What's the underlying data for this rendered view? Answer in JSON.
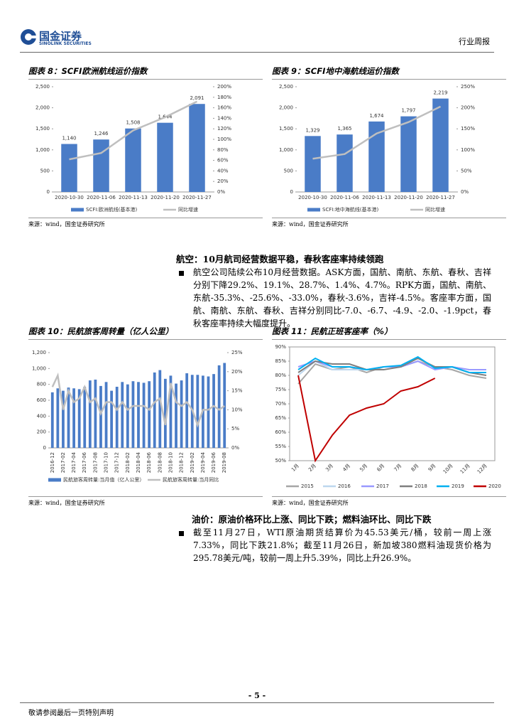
{
  "header": {
    "logo_cn": "国金证券",
    "logo_en": "SINOLINK SECURITIES",
    "report_type": "行业周报"
  },
  "chart_data": [
    {
      "type": "combo",
      "title": "图表 8：SCFI欧洲航线运价指数",
      "source": "来源：wind，国金证券研究所",
      "categories": [
        "2020-10-30",
        "2020-11-06",
        "2020-11-13",
        "2020-11-20",
        "2020-11-27"
      ],
      "ylim": [
        0,
        2500
      ],
      "yticks": [
        0,
        500,
        {
          "value": 1000,
          "label": "1,000"
        },
        {
          "value": 1500,
          "label": "1,500"
        },
        {
          "value": 2000,
          "label": "2,000"
        },
        {
          "value": 2500,
          "label": "2,500"
        }
      ],
      "y2lim": [
        0,
        200
      ],
      "y2ticks": [
        {
          "value": 0,
          "label": "0%"
        },
        {
          "value": 20,
          "label": "20%"
        },
        {
          "value": 40,
          "label": "40%"
        },
        {
          "value": 60,
          "label": "60%"
        },
        {
          "value": 80,
          "label": "80%"
        },
        {
          "value": 100,
          "label": "100%"
        },
        {
          "value": 120,
          "label": "120%"
        },
        {
          "value": 140,
          "label": "140%"
        },
        {
          "value": 160,
          "label": "160%"
        },
        {
          "value": 180,
          "label": "180%"
        },
        {
          "value": 200,
          "label": "200%"
        }
      ],
      "series": [
        {
          "name": "SCFI:欧洲航线(基本港)",
          "mark": "bar",
          "color": "#4a7cc7",
          "values": [
            1140,
            1246,
            1508,
            1644,
            2091
          ],
          "value_labels": [
            "1,140",
            "1,246",
            "1,508",
            "1,644",
            "2,091"
          ]
        },
        {
          "name": "同比增速",
          "mark": "line",
          "axis": "y2",
          "color": "#bfbfbf",
          "values": [
            62,
            74,
            117,
            142,
            172
          ]
        }
      ]
    },
    {
      "type": "combo",
      "title": "图表 9：SCFI地中海航线运价指数",
      "source": "来源：wind，国金证券研究所",
      "categories": [
        "2020-10-30",
        "2020-11-06",
        "2020-11-13",
        "2020-11-20",
        "2020-11-27"
      ],
      "ylim": [
        0,
        2500
      ],
      "yticks": [
        0,
        500,
        {
          "value": 1000,
          "label": "1,000"
        },
        {
          "value": 1500,
          "label": "1,500"
        },
        {
          "value": 2000,
          "label": "2,000"
        },
        {
          "value": 2500,
          "label": "2,500"
        }
      ],
      "y2lim": [
        0,
        250
      ],
      "y2ticks": [
        {
          "value": 0,
          "label": "0%"
        },
        {
          "value": 50,
          "label": "50%"
        },
        {
          "value": 100,
          "label": "100%"
        },
        {
          "value": 150,
          "label": "150%"
        },
        {
          "value": 200,
          "label": "200%"
        },
        {
          "value": 250,
          "label": "250%"
        }
      ],
      "series": [
        {
          "name": "SCFI:地中海航线(基本港)",
          "mark": "bar",
          "color": "#4a7cc7",
          "values": [
            1329,
            1365,
            1674,
            1797,
            2219
          ],
          "value_labels": [
            "1,329",
            "1,365",
            "1,674",
            "1,797",
            "2,219"
          ]
        },
        {
          "name": "同比增速",
          "mark": "line",
          "axis": "y2",
          "color": "#bfbfbf",
          "values": [
            79,
            90,
            139,
            166,
            203
          ]
        }
      ]
    },
    {
      "type": "combo",
      "title": "图表 10：民航旅客周转量（亿人公里）",
      "source": "来源：wind，国金证券研究所",
      "categories": [
        "2016-12",
        null,
        "2017-02",
        null,
        "2017-04",
        null,
        "2017-06",
        null,
        "2017-08",
        null,
        "2017-10",
        null,
        "2017-12",
        null,
        "2018-02",
        null,
        "2018-04",
        null,
        "2018-06",
        null,
        "2018-08",
        null,
        "2018-10",
        null,
        "2018-12",
        null,
        "2019-02",
        null,
        "2019-04",
        null,
        "2019-06",
        null,
        "2019-08"
      ],
      "ylim": [
        0,
        1200
      ],
      "yticks": [
        0,
        200,
        400,
        600,
        800,
        {
          "value": 1000,
          "label": "1,000"
        },
        {
          "value": 1200,
          "label": "1,200"
        }
      ],
      "y2lim": [
        0,
        25
      ],
      "y2ticks": [
        {
          "value": 0,
          "label": "0%"
        },
        {
          "value": 5,
          "label": "5%"
        },
        {
          "value": 10,
          "label": "10%"
        },
        {
          "value": 15,
          "label": "15%"
        },
        {
          "value": 20,
          "label": "20%"
        },
        {
          "value": 25,
          "label": "25%"
        }
      ],
      "series": [
        {
          "name": "民航旅客周转量:当月值（亿人公里）",
          "mark": "bar",
          "color": "#4a7cc7",
          "values": [
            700,
            750,
            720,
            760,
            750,
            740,
            770,
            850,
            860,
            780,
            830,
            720,
            770,
            830,
            800,
            840,
            830,
            820,
            840,
            950,
            980,
            870,
            910,
            810,
            850,
            940,
            920,
            920,
            910,
            900,
            930,
            1040,
            1070
          ]
        },
        {
          "name": "民航旅客周转量:当月同比",
          "mark": "line",
          "axis": "y2",
          "color": "#bfbfbf",
          "values": [
            16,
            19,
            10,
            15,
            12,
            13,
            16,
            12,
            13,
            9,
            12,
            12,
            10,
            12,
            10,
            11,
            11,
            11,
            10,
            12,
            13,
            6,
            17,
            12,
            11,
            12,
            10,
            6,
            10,
            10,
            11,
            10,
            11
          ]
        }
      ]
    },
    {
      "type": "line",
      "title": "图表 11：民航正班客座率（%）",
      "source": "来源：wind，国金证券研究所",
      "categories": [
        "1月",
        "2月",
        "3月",
        "4月",
        "5月",
        "6月",
        "7月",
        "8月",
        "9月",
        "10月",
        "11月",
        "12月"
      ],
      "ylim": [
        50,
        90
      ],
      "yticks": [
        {
          "value": 50,
          "label": "50%"
        },
        {
          "value": 55,
          "label": "55%"
        },
        {
          "value": 60,
          "label": "60%"
        },
        {
          "value": 65,
          "label": "65%"
        },
        {
          "value": 70,
          "label": "70%"
        },
        {
          "value": 75,
          "label": "75%"
        },
        {
          "value": 80,
          "label": "80%"
        },
        {
          "value": 85,
          "label": "85%"
        },
        {
          "value": 90,
          "label": "90%"
        }
      ],
      "series": [
        {
          "name": "2015",
          "color": "#a6a6a6",
          "values": [
            77,
            84,
            82,
            83,
            81,
            83,
            83,
            85,
            83,
            82,
            80,
            79
          ]
        },
        {
          "name": "2016",
          "color": "#bdd7ee",
          "values": [
            80,
            85,
            82,
            82,
            82,
            83,
            83,
            85,
            82,
            83,
            82,
            82
          ]
        },
        {
          "name": "2017",
          "color": "#9999ff",
          "values": [
            83,
            85,
            83,
            83,
            82,
            83,
            83,
            85,
            82,
            83,
            82,
            82
          ]
        },
        {
          "name": "2018",
          "color": "#7f7f7f",
          "values": [
            81,
            85,
            84,
            84,
            82,
            82,
            83,
            86,
            83,
            83,
            81,
            80
          ]
        },
        {
          "name": "2019",
          "color": "#00b0f0",
          "values": [
            82,
            86,
            83,
            83,
            82,
            83,
            83.5,
            86.5,
            82.5,
            83,
            81,
            81
          ]
        },
        {
          "name": "2020",
          "color": "#c00000",
          "values": [
            80,
            50,
            59,
            66,
            68.5,
            70,
            74.5,
            76,
            79,
            null,
            null,
            null
          ]
        }
      ]
    }
  ],
  "sections": [
    {
      "heading": "航空：10月航司经营数据平稳，春秋客座率持续领跑",
      "paragraph": "航空公司陆续公布10月经营数据。ASK方面，国航、南航、东航、春秋、吉祥分别下降29.2%、19.1%、28.7%、1.4%、4.7%。RPK方面，国航、南航、东航-35.3%、-25.6%、-33.0%，春秋-3.6%，吉祥-4.5%。客座率方面，国航、南航、东航、春秋、吉祥分别同比-7.0、-6.7、-4.9、-2.0、-1.9pct，春秋客座率持续大幅度提升。"
    },
    {
      "heading": "油价：原油价格环比上涨、同比下跌；燃料油环比、同比下跌",
      "paragraph": "截至11月27日，WTI原油期货结算价为45.53美元/桶，较前一周上涨7.33%，同比下跌21.8%；截至11月26日，新加坡380燃料油现货价格为295.78美元/吨，较前一周上升5.39%，同比上升26.9%。"
    }
  ],
  "footer": {
    "page": "- 5 -",
    "disclaimer": "敬请参阅最后一页特别声明"
  }
}
